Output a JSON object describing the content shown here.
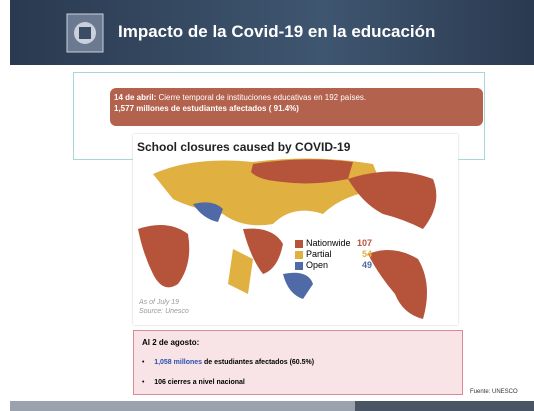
{
  "header": {
    "title": "Impacto de la Covid-19 en la educación"
  },
  "banner": {
    "date": "14 de abril:",
    "text": " Cierre temporal de instituciones educativas en 192 países.",
    "line2": "1,577 millones de estudiantes afectados ( 91.4%)"
  },
  "map": {
    "title": "School closures caused by COVID-19",
    "legend": [
      {
        "label": "Nationwide",
        "count": 107,
        "color": "#b5543a"
      },
      {
        "label": "Partial",
        "count": 54,
        "color": "#e0b040"
      },
      {
        "label": "Open",
        "count": 49,
        "color": "#4f6aa6"
      }
    ],
    "note": "As of July 19",
    "source": "Source: Unesco"
  },
  "update": {
    "heading": "Al 2 de agosto:",
    "bullets": [
      {
        "highlight": "1,058 millones",
        "text": " de estudiantes afectados (60.5%)"
      },
      {
        "text": "106 cierres a nivel nacional"
      }
    ]
  },
  "footer": {
    "source": "Fuente: UNESCO"
  }
}
